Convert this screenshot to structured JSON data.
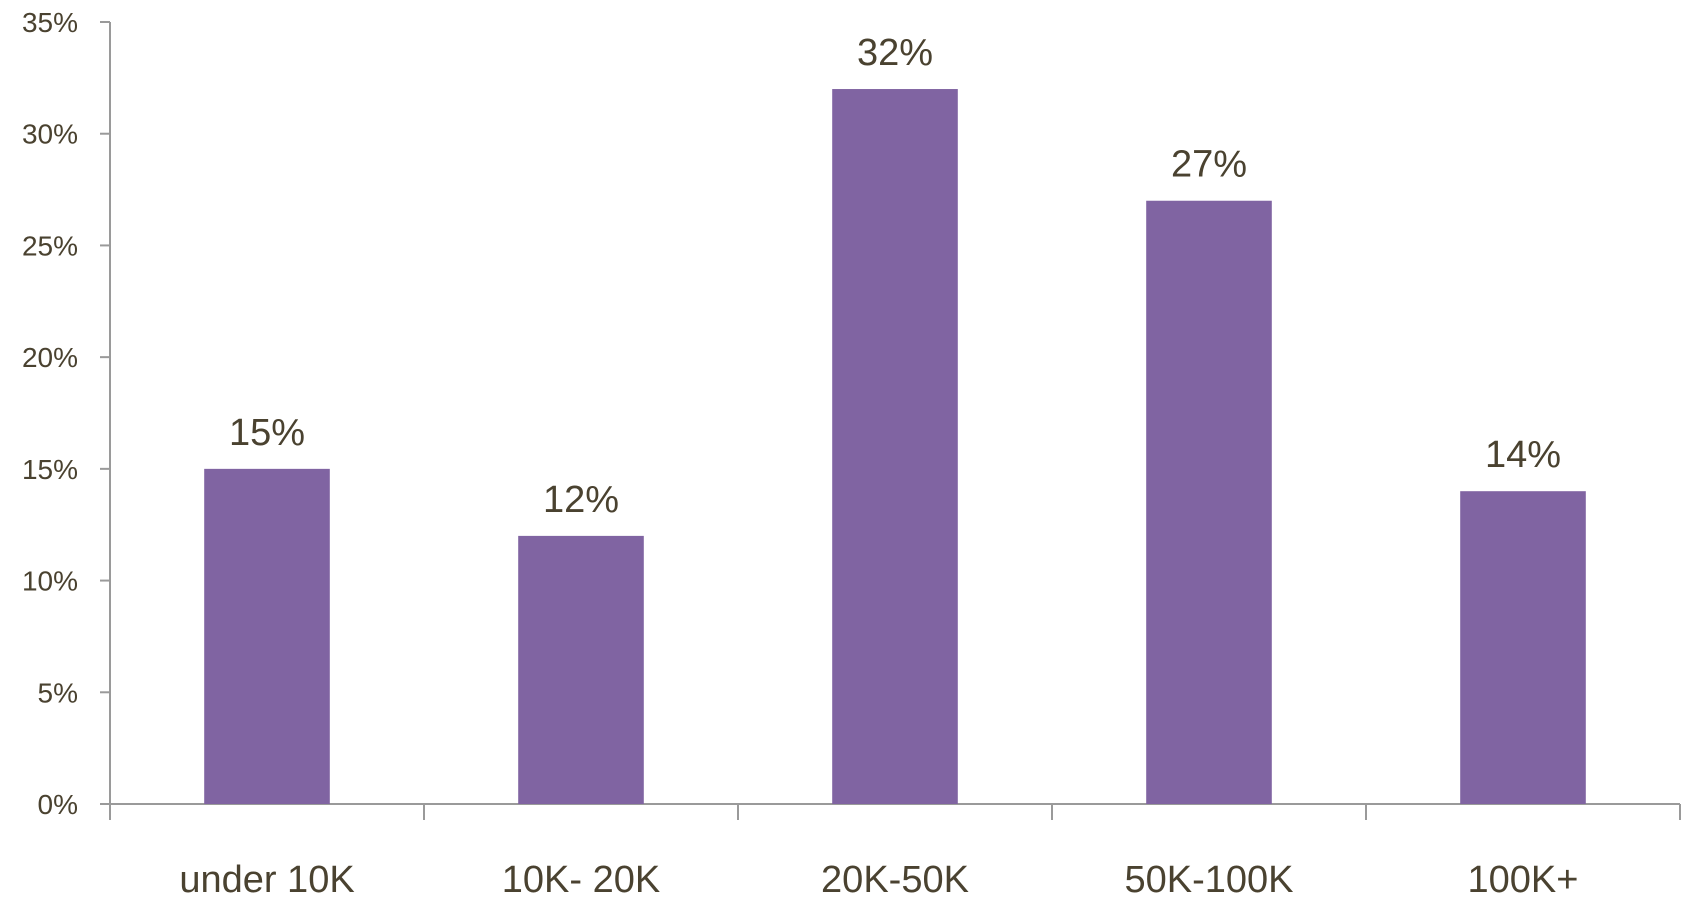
{
  "chart_data": {
    "type": "bar",
    "title": "",
    "xlabel": "",
    "ylabel": "",
    "categories": [
      "under 10K",
      "10K- 20K",
      "20K-50K",
      "50K-100K",
      "100K+"
    ],
    "values": [
      15,
      12,
      32,
      27,
      14
    ],
    "data_labels": [
      "15%",
      "12%",
      "32%",
      "27%",
      "14%"
    ],
    "ylim": [
      0,
      35
    ],
    "yticks": [
      0,
      5,
      10,
      15,
      20,
      25,
      30,
      35
    ],
    "ytick_labels": [
      "0%",
      "5%",
      "10%",
      "15%",
      "20%",
      "25%",
      "30%",
      "35%"
    ],
    "grid": false,
    "legend": "none",
    "colors": {
      "bar": "#8064a2",
      "axis": "#9a9a9a",
      "text": "#4a4230"
    }
  }
}
